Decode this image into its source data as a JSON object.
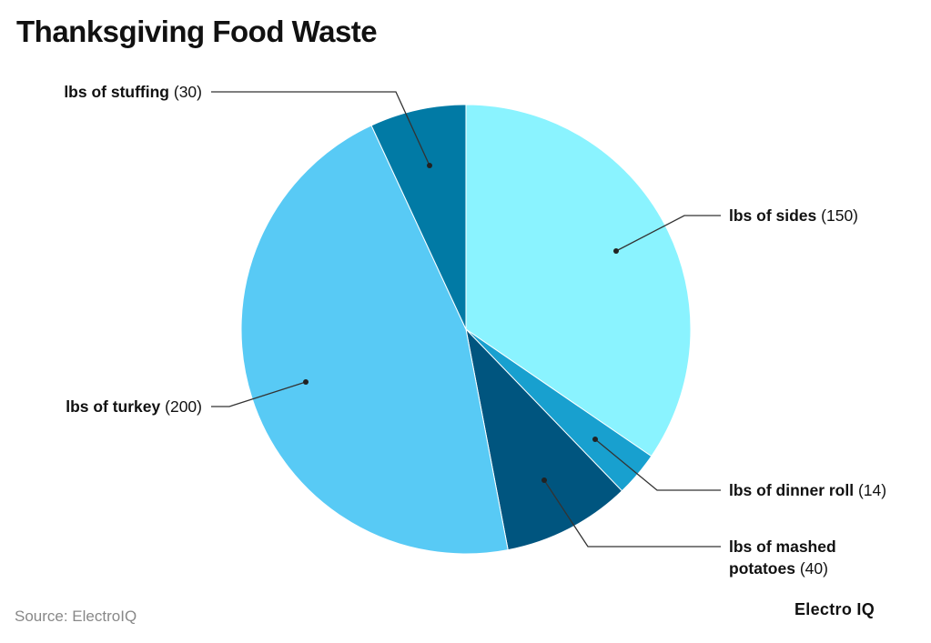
{
  "chart_data": {
    "type": "pie",
    "title": "Thanksgiving Food Waste",
    "start": "12 o'clock, clockwise",
    "slices": [
      {
        "label": "lbs of sides",
        "value": 150,
        "color": "#8af3ff"
      },
      {
        "label": "lbs of dinner roll",
        "value": 14,
        "color": "#18a0cf"
      },
      {
        "label": "lbs of mashed potatoes",
        "value": 40,
        "color": "#00557f"
      },
      {
        "label": "lbs of turkey",
        "value": 200,
        "color": "#58caf5"
      },
      {
        "label": "lbs of stuffing",
        "value": 30,
        "color": "#017aa5"
      }
    ]
  },
  "footer": {
    "source": "Source: ElectroIQ",
    "brand": "Electro IQ"
  }
}
